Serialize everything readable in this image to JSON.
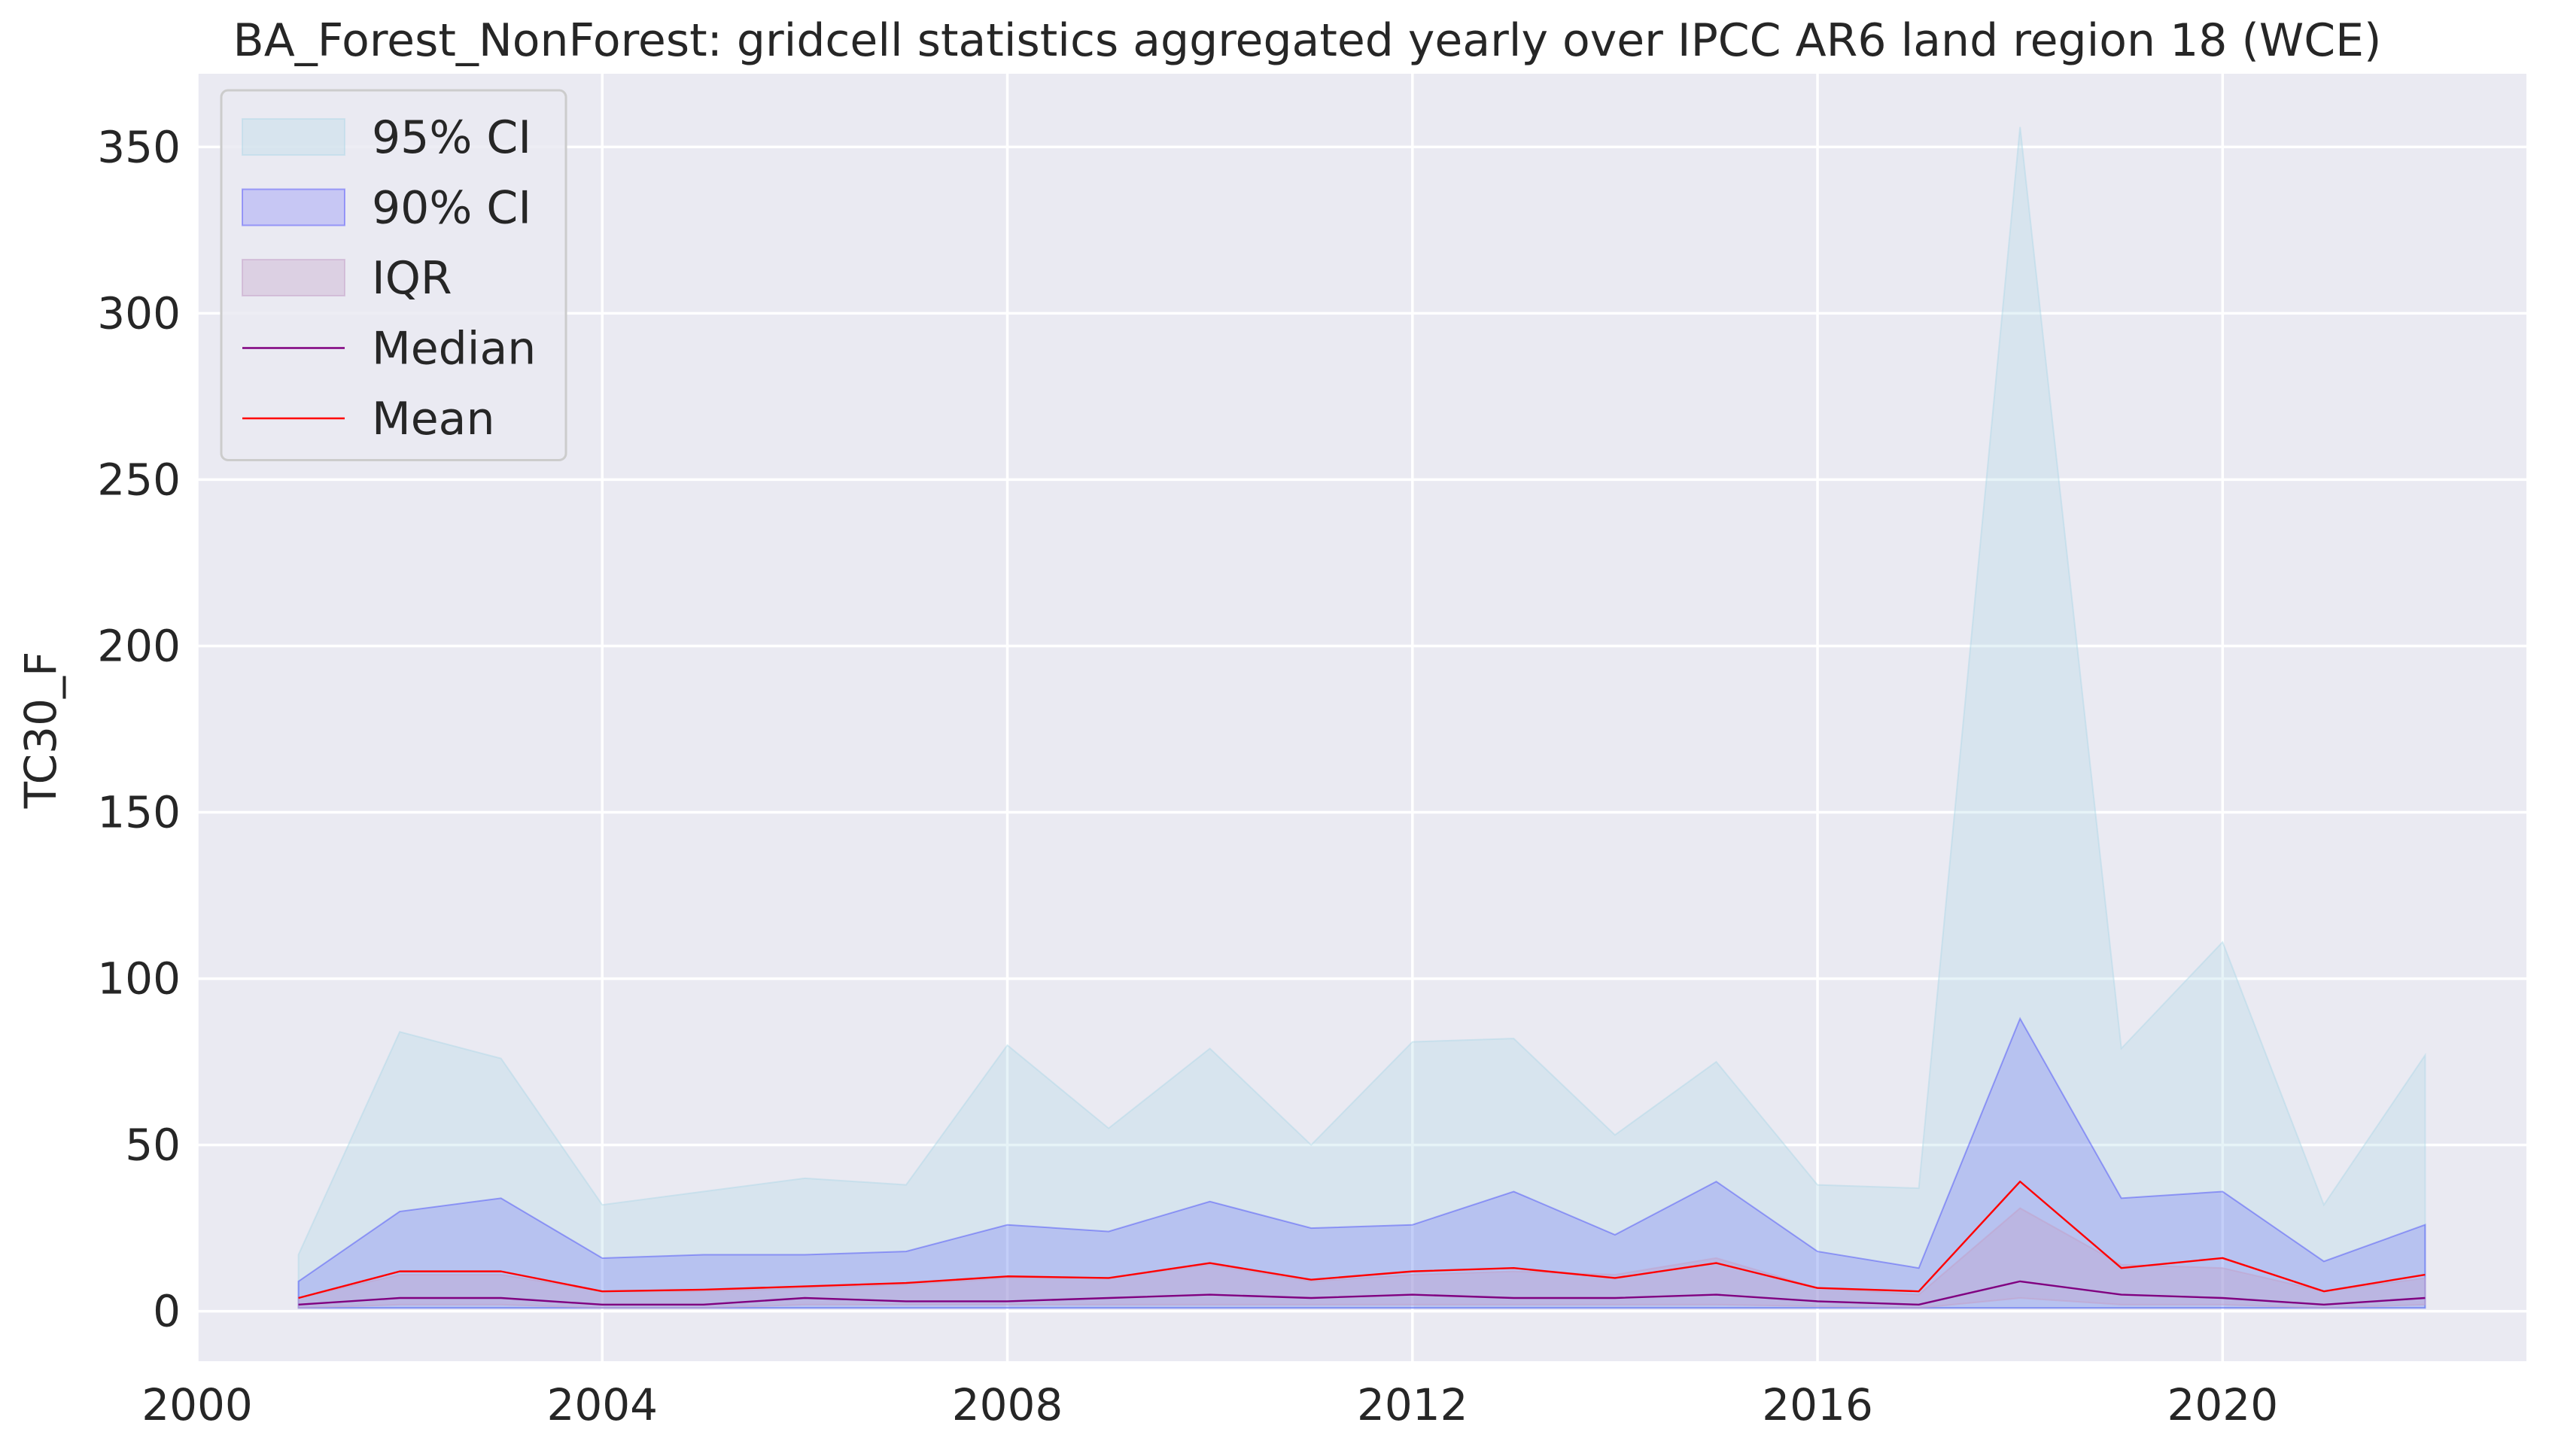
{
  "chart_data": {
    "type": "area",
    "title": "BA_Forest_NonForest: gridcell statistics aggregated yearly over IPCC AR6 land region 18 (WCE)",
    "xlabel": "",
    "ylabel": "TC30_F",
    "xlim": [
      2000,
      2023
    ],
    "ylim": [
      -15,
      372
    ],
    "x_ticks": [
      2000,
      2004,
      2008,
      2012,
      2016,
      2020
    ],
    "y_ticks": [
      0,
      50,
      100,
      150,
      200,
      250,
      300,
      350
    ],
    "x_tick_labels": [
      "2000",
      "2004",
      "2008",
      "2012",
      "2016",
      "2020"
    ],
    "y_tick_labels": [
      "0",
      "50",
      "100",
      "150",
      "200",
      "250",
      "300",
      "350"
    ],
    "grid": true,
    "background": "#eaeaf2",
    "legend_position": "top-left",
    "x": [
      2001,
      2002,
      2003,
      2004,
      2005,
      2006,
      2007,
      2008,
      2009,
      2010,
      2011,
      2012,
      2013,
      2014,
      2015,
      2016,
      2017,
      2018,
      2019,
      2020,
      2021,
      2022
    ],
    "bands": [
      {
        "name": "95% CI",
        "color": "#add8e6",
        "opacity": 0.3,
        "lower": [
          1,
          1,
          1,
          1,
          1,
          1,
          1,
          1,
          1,
          1,
          1,
          1,
          1,
          1,
          1,
          1,
          1,
          1,
          1,
          1,
          1,
          1
        ],
        "upper": [
          17,
          84,
          76,
          32,
          36,
          40,
          38,
          80,
          55,
          79,
          50,
          81,
          82,
          53,
          75,
          38,
          37,
          356,
          79,
          111,
          32,
          77
        ]
      },
      {
        "name": "90% CI",
        "color": "#0000ff",
        "opacity": 0.15,
        "lower": [
          1,
          1,
          1,
          1,
          1,
          1,
          1,
          1,
          1,
          1,
          1,
          1,
          1,
          1,
          1,
          1,
          1,
          1,
          1,
          1,
          1,
          1
        ],
        "upper": [
          9,
          30,
          34,
          16,
          17,
          17,
          18,
          26,
          24,
          33,
          25,
          26,
          36,
          23,
          39,
          18,
          13,
          88,
          34,
          36,
          15,
          26
        ]
      },
      {
        "name": "IQR",
        "color": "#c3a0c8",
        "opacity": 0.35,
        "lower": [
          1,
          2,
          2,
          1,
          1,
          2,
          2,
          2,
          2,
          2,
          2,
          2,
          2,
          2,
          2,
          1.5,
          1,
          4,
          2,
          2,
          1,
          2
        ],
        "upper": [
          4,
          11,
          11,
          6,
          6,
          7,
          8,
          10,
          10,
          14,
          9,
          11,
          12,
          11,
          16,
          7,
          5,
          31,
          14,
          13,
          6,
          10
        ]
      }
    ],
    "series": [
      {
        "name": "Median",
        "color": "#800080",
        "values": [
          2,
          4,
          4,
          2,
          2,
          4,
          3,
          3,
          4,
          5,
          4,
          5,
          4,
          4,
          5,
          3,
          2,
          9,
          5,
          4,
          2,
          4
        ]
      },
      {
        "name": "Mean",
        "color": "#ff0000",
        "values": [
          4,
          12,
          12,
          6,
          6.5,
          7.5,
          8.5,
          10.5,
          10,
          14.5,
          9.5,
          12,
          13,
          10,
          14.5,
          7,
          6,
          39,
          13,
          16,
          6,
          11
        ]
      }
    ]
  }
}
